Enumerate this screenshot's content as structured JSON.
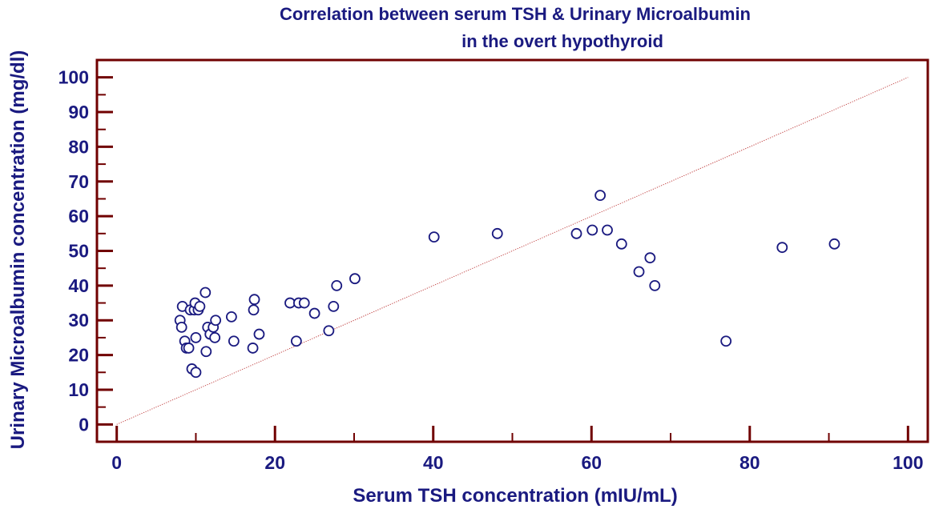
{
  "colors": {
    "text": "#1a1a80",
    "frame": "#700000",
    "marker": "#1a1a80",
    "identity_line": "#c04040"
  },
  "chart_data": {
    "type": "scatter",
    "title": [
      "Correlation between serum TSH & Urinary Microalbumin",
      "in the overt hypothyroid"
    ],
    "xlabel": "Serum TSH concentration (mIU/mL)",
    "ylabel": "Urinary Microalbumin concentration (mg/dl)",
    "xlim": [
      -2.5,
      102.5
    ],
    "ylim": [
      -5,
      105
    ],
    "x_ticks": [
      0,
      20,
      40,
      60,
      80,
      100
    ],
    "x_minor_ticks": [
      10,
      30,
      50,
      70,
      90
    ],
    "y_ticks": [
      0,
      10,
      20,
      30,
      40,
      50,
      60,
      70,
      80,
      90,
      100
    ],
    "y_minor_ticks": [
      5,
      15,
      25,
      35,
      45,
      55,
      65,
      75,
      85,
      95
    ],
    "grid": false,
    "legend": "none",
    "reference_line": {
      "style": "dotted",
      "from": [
        0,
        0
      ],
      "to": [
        100,
        100
      ]
    },
    "points": [
      [
        8.0,
        30
      ],
      [
        8.2,
        28
      ],
      [
        8.3,
        34
      ],
      [
        8.6,
        24
      ],
      [
        8.8,
        22
      ],
      [
        9.1,
        22
      ],
      [
        9.3,
        33
      ],
      [
        9.5,
        16
      ],
      [
        9.8,
        33
      ],
      [
        9.9,
        35
      ],
      [
        10.0,
        15
      ],
      [
        10.0,
        25
      ],
      [
        10.3,
        33
      ],
      [
        10.5,
        34
      ],
      [
        11.2,
        38
      ],
      [
        11.3,
        21
      ],
      [
        11.5,
        28
      ],
      [
        11.8,
        26
      ],
      [
        12.2,
        28
      ],
      [
        12.4,
        25
      ],
      [
        12.5,
        30
      ],
      [
        14.5,
        31
      ],
      [
        14.8,
        24
      ],
      [
        17.2,
        22
      ],
      [
        17.3,
        33
      ],
      [
        17.4,
        36
      ],
      [
        18.0,
        26
      ],
      [
        21.9,
        35
      ],
      [
        22.7,
        24
      ],
      [
        23.0,
        35
      ],
      [
        23.7,
        35
      ],
      [
        25.0,
        32
      ],
      [
        26.8,
        27
      ],
      [
        27.4,
        34
      ],
      [
        27.8,
        40
      ],
      [
        30.1,
        42
      ],
      [
        40.1,
        54
      ],
      [
        48.1,
        55
      ],
      [
        58.1,
        55
      ],
      [
        60.1,
        56
      ],
      [
        61.1,
        66
      ],
      [
        62.0,
        56
      ],
      [
        63.8,
        52
      ],
      [
        66.0,
        44
      ],
      [
        67.4,
        48
      ],
      [
        68.0,
        40
      ],
      [
        77.0,
        24
      ],
      [
        84.1,
        51
      ],
      [
        90.7,
        52
      ]
    ]
  }
}
